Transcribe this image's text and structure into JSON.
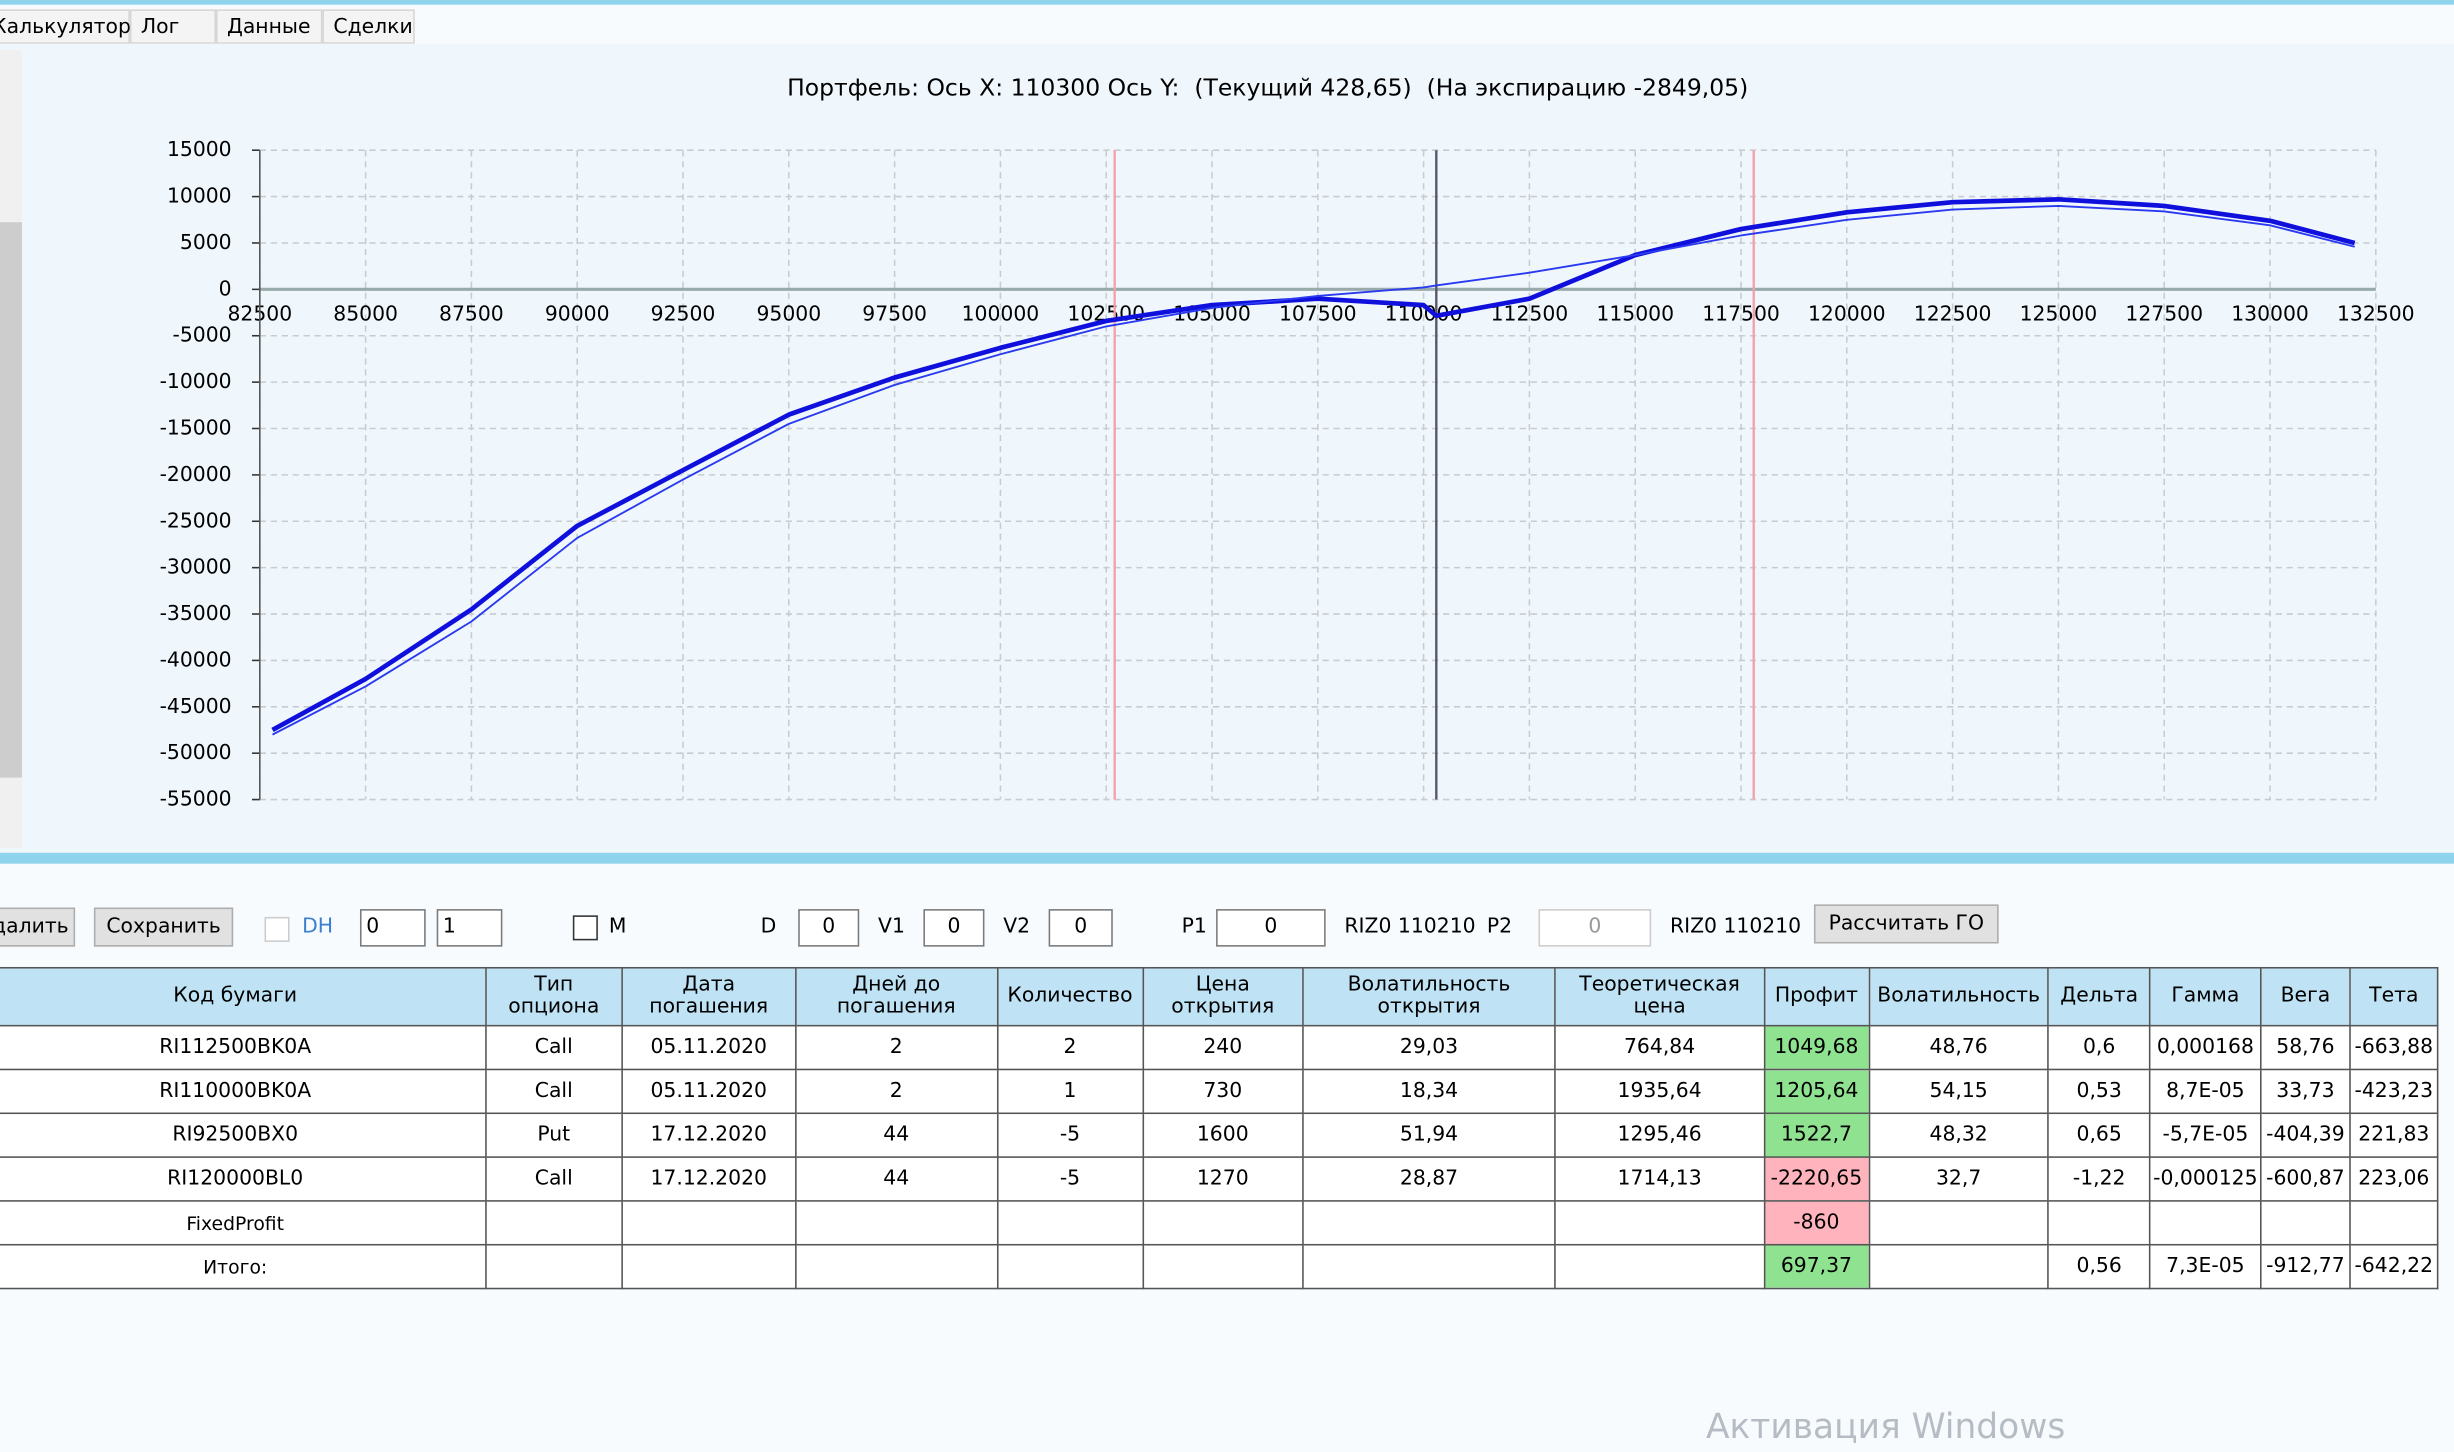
{
  "tabs": [
    "Калькулятор",
    "Лог",
    "Данные",
    "Сделки"
  ],
  "chart_data": {
    "type": "line",
    "title": "Портфель: Ось X: 110300 Ось Y:  (Текущий 428,65)  (На экспирацию -2849,05)",
    "xlim": [
      82500,
      132500
    ],
    "xticks": [
      82500,
      85000,
      87500,
      90000,
      92500,
      95000,
      97500,
      100000,
      102500,
      105000,
      107500,
      110000,
      112500,
      115000,
      117500,
      120000,
      122500,
      125000,
      127500,
      130000,
      132500
    ],
    "ylim": [
      -55000,
      15000
    ],
    "yticks": [
      15000,
      10000,
      5000,
      0,
      -5000,
      -10000,
      -15000,
      -20000,
      -25000,
      -30000,
      -35000,
      -40000,
      -45000,
      -50000,
      -55000
    ],
    "grid": true,
    "vlines": [
      {
        "value": 102700,
        "color": "#f4a0a8"
      },
      {
        "value": 117800,
        "color": "#f4a0a8"
      },
      {
        "value": 110300,
        "color": "#555566"
      }
    ],
    "series": [
      {
        "color": "#1010dd",
        "width": 3,
        "x": [
          82800,
          85000,
          87500,
          90000,
          92500,
          95000,
          97500,
          100000,
          102500,
          105000,
          107500,
          110000,
          110300,
          112500,
          115000,
          117500,
          120000,
          122500,
          125000,
          127500,
          130000,
          132000
        ],
        "values": [
          -47500,
          -42000,
          -34500,
          -25500,
          -19500,
          -13500,
          -9500,
          -6300,
          -3400,
          -1700,
          -1000,
          -1700,
          -2849.05,
          -1000,
          3700,
          6500,
          8300,
          9400,
          9700,
          9000,
          7400,
          5000
        ]
      },
      {
        "color": "#2a3af0",
        "width": 1.2,
        "x": [
          82800,
          85000,
          87500,
          90000,
          92500,
          95000,
          97500,
          100000,
          102500,
          105000,
          107500,
          110000,
          110300,
          112500,
          115000,
          117500,
          120000,
          122500,
          125000,
          127500,
          130000,
          132000
        ],
        "values": [
          -48000,
          -42800,
          -35800,
          -26800,
          -20500,
          -14500,
          -10300,
          -7000,
          -4000,
          -2000,
          -700,
          200,
          428.65,
          1800,
          3700,
          5800,
          7500,
          8600,
          9000,
          8400,
          6900,
          4600
        ]
      }
    ]
  },
  "toolbar": {
    "delete": "Удалить",
    "save": "Сохранить",
    "dh": "DH",
    "spin1": "0",
    "spin2": "1",
    "m": "M",
    "d_label": "D",
    "d": "0",
    "v1_label": "V1",
    "v1": "0",
    "v2_label": "V2",
    "v2": "0",
    "p1_label": "P1",
    "p1": "0",
    "p1_code": "RIZ0 110210",
    "p2_label": "P2",
    "p2": "0",
    "p2_code": "RIZ0 110210",
    "calc": "Рассчитать ГО"
  },
  "table": {
    "columns": [
      "Код бумаги",
      "Тип опциона",
      "Дата погашения",
      "Дней до погашения",
      "Количество",
      "Цена открытия",
      "Волатильность открытия",
      "Теоретическая цена",
      "Профит",
      "Волатильность",
      "Дельта",
      "Гамма",
      "Вега",
      "Тета"
    ],
    "rows": [
      [
        "RI112500BK0A",
        "Call",
        "05.11.2020",
        "2",
        "2",
        "240",
        "29,03",
        "764,84",
        "1049,68",
        "48,76",
        "0,6",
        "0,000168",
        "58,76",
        "-663,88"
      ],
      [
        "RI110000BK0A",
        "Call",
        "05.11.2020",
        "2",
        "1",
        "730",
        "18,34",
        "1935,64",
        "1205,64",
        "54,15",
        "0,53",
        "8,7E-05",
        "33,73",
        "-423,23"
      ],
      [
        "RI92500BX0",
        "Put",
        "17.12.2020",
        "44",
        "-5",
        "1600",
        "51,94",
        "1295,46",
        "1522,7",
        "48,32",
        "0,65",
        "-5,7E-05",
        "-404,39",
        "221,83"
      ],
      [
        "RI120000BL0",
        "Call",
        "17.12.2020",
        "44",
        "-5",
        "1270",
        "28,87",
        "1714,13",
        "-2220,65",
        "32,7",
        "-1,22",
        "-0,000125",
        "-600,87",
        "223,06"
      ],
      [
        "FixedProfit",
        null,
        null,
        null,
        null,
        null,
        null,
        null,
        "-860",
        null,
        null,
        null,
        null,
        null
      ],
      [
        "Итого:",
        null,
        null,
        null,
        null,
        null,
        null,
        null,
        "697,37",
        null,
        "0,56",
        "7,3E-05",
        "-912,77",
        "-642,22"
      ]
    ]
  },
  "watermark": "Активация Windows"
}
